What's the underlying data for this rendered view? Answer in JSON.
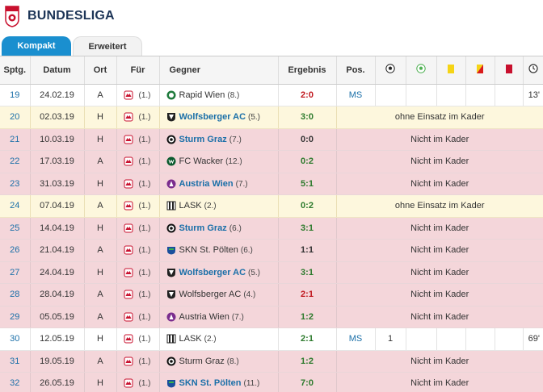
{
  "header": {
    "title": "BUNDESLIGA"
  },
  "tabs": [
    {
      "label": "Kompakt",
      "active": true
    },
    {
      "label": "Erweitert",
      "active": false
    }
  ],
  "columns": {
    "sptg": "Sptg.",
    "datum": "Datum",
    "ort": "Ort",
    "fuer": "Für",
    "gegner": "Gegner",
    "ergebnis": "Ergebnis",
    "pos": "Pos."
  },
  "stat_icons": [
    "goal-icon",
    "assist-icon",
    "yellow-card-icon",
    "yellow-red-card-icon",
    "red-card-icon",
    "clock-icon"
  ],
  "colors": {
    "accent": "#1a8fcf",
    "loss": "#c0171e",
    "win": "#2c7a2c",
    "pink_row": "#f4d6da",
    "yellow_row": "#fdf7dd"
  },
  "rows": [
    {
      "sptg": "19",
      "datum": "24.02.19",
      "ort": "A",
      "fuer_rank": "(1.)",
      "gegner": "Rapid Wien",
      "gegner_rank": "(8.)",
      "bold": false,
      "ergebnis": "2:0",
      "result": "loss",
      "style": "white",
      "pos": "MS",
      "goals": "",
      "minutes": "13'",
      "note": "",
      "icon": "rapid"
    },
    {
      "sptg": "20",
      "datum": "02.03.19",
      "ort": "H",
      "fuer_rank": "(1.)",
      "gegner": "Wolfsberger AC",
      "gegner_rank": "(5.)",
      "bold": true,
      "ergebnis": "3:0",
      "result": "win",
      "style": "yellow",
      "note": "ohne Einsatz im Kader",
      "icon": "wac"
    },
    {
      "sptg": "21",
      "datum": "10.03.19",
      "ort": "H",
      "fuer_rank": "(1.)",
      "gegner": "Sturm Graz",
      "gegner_rank": "(7.)",
      "bold": true,
      "ergebnis": "0:0",
      "result": "draw",
      "style": "pink",
      "note": "Nicht im Kader",
      "icon": "sturm"
    },
    {
      "sptg": "22",
      "datum": "17.03.19",
      "ort": "A",
      "fuer_rank": "(1.)",
      "gegner": "FC Wacker",
      "gegner_rank": "(12.)",
      "bold": false,
      "ergebnis": "0:2",
      "result": "win",
      "style": "pink",
      "note": "Nicht im Kader",
      "icon": "wacker"
    },
    {
      "sptg": "23",
      "datum": "31.03.19",
      "ort": "H",
      "fuer_rank": "(1.)",
      "gegner": "Austria Wien",
      "gegner_rank": "(7.)",
      "bold": true,
      "ergebnis": "5:1",
      "result": "win",
      "style": "pink",
      "note": "Nicht im Kader",
      "icon": "austria"
    },
    {
      "sptg": "24",
      "datum": "07.04.19",
      "ort": "A",
      "fuer_rank": "(1.)",
      "gegner": "LASK",
      "gegner_rank": "(2.)",
      "bold": false,
      "ergebnis": "0:2",
      "result": "win",
      "style": "yellow",
      "note": "ohne Einsatz im Kader",
      "icon": "lask"
    },
    {
      "sptg": "25",
      "datum": "14.04.19",
      "ort": "H",
      "fuer_rank": "(1.)",
      "gegner": "Sturm Graz",
      "gegner_rank": "(6.)",
      "bold": true,
      "ergebnis": "3:1",
      "result": "win",
      "style": "pink",
      "note": "Nicht im Kader",
      "icon": "sturm"
    },
    {
      "sptg": "26",
      "datum": "21.04.19",
      "ort": "A",
      "fuer_rank": "(1.)",
      "gegner": "SKN St. Pölten",
      "gegner_rank": "(6.)",
      "bold": false,
      "ergebnis": "1:1",
      "result": "draw",
      "style": "pink",
      "note": "Nicht im Kader",
      "icon": "skn"
    },
    {
      "sptg": "27",
      "datum": "24.04.19",
      "ort": "H",
      "fuer_rank": "(1.)",
      "gegner": "Wolfsberger AC",
      "gegner_rank": "(5.)",
      "bold": true,
      "ergebnis": "3:1",
      "result": "win",
      "style": "pink",
      "note": "Nicht im Kader",
      "icon": "wac"
    },
    {
      "sptg": "28",
      "datum": "28.04.19",
      "ort": "A",
      "fuer_rank": "(1.)",
      "gegner": "Wolfsberger AC",
      "gegner_rank": "(4.)",
      "bold": false,
      "ergebnis": "2:1",
      "result": "loss",
      "style": "pink",
      "note": "Nicht im Kader",
      "icon": "wac"
    },
    {
      "sptg": "29",
      "datum": "05.05.19",
      "ort": "A",
      "fuer_rank": "(1.)",
      "gegner": "Austria Wien",
      "gegner_rank": "(7.)",
      "bold": false,
      "ergebnis": "1:2",
      "result": "win",
      "style": "pink",
      "note": "Nicht im Kader",
      "icon": "austria"
    },
    {
      "sptg": "30",
      "datum": "12.05.19",
      "ort": "H",
      "fuer_rank": "(1.)",
      "gegner": "LASK",
      "gegner_rank": "(2.)",
      "bold": false,
      "ergebnis": "2:1",
      "result": "win",
      "style": "white",
      "pos": "MS",
      "goals": "1",
      "minutes": "69'",
      "note": "",
      "icon": "lask"
    },
    {
      "sptg": "31",
      "datum": "19.05.19",
      "ort": "A",
      "fuer_rank": "(1.)",
      "gegner": "Sturm Graz",
      "gegner_rank": "(8.)",
      "bold": false,
      "ergebnis": "1:2",
      "result": "win",
      "style": "pink",
      "note": "Nicht im Kader",
      "icon": "sturm"
    },
    {
      "sptg": "32",
      "datum": "26.05.19",
      "ort": "H",
      "fuer_rank": "(1.)",
      "gegner": "SKN St. Pölten",
      "gegner_rank": "(11.)",
      "bold": true,
      "ergebnis": "7:0",
      "result": "win",
      "style": "pink",
      "note": "Nicht im Kader",
      "icon": "skn"
    }
  ]
}
